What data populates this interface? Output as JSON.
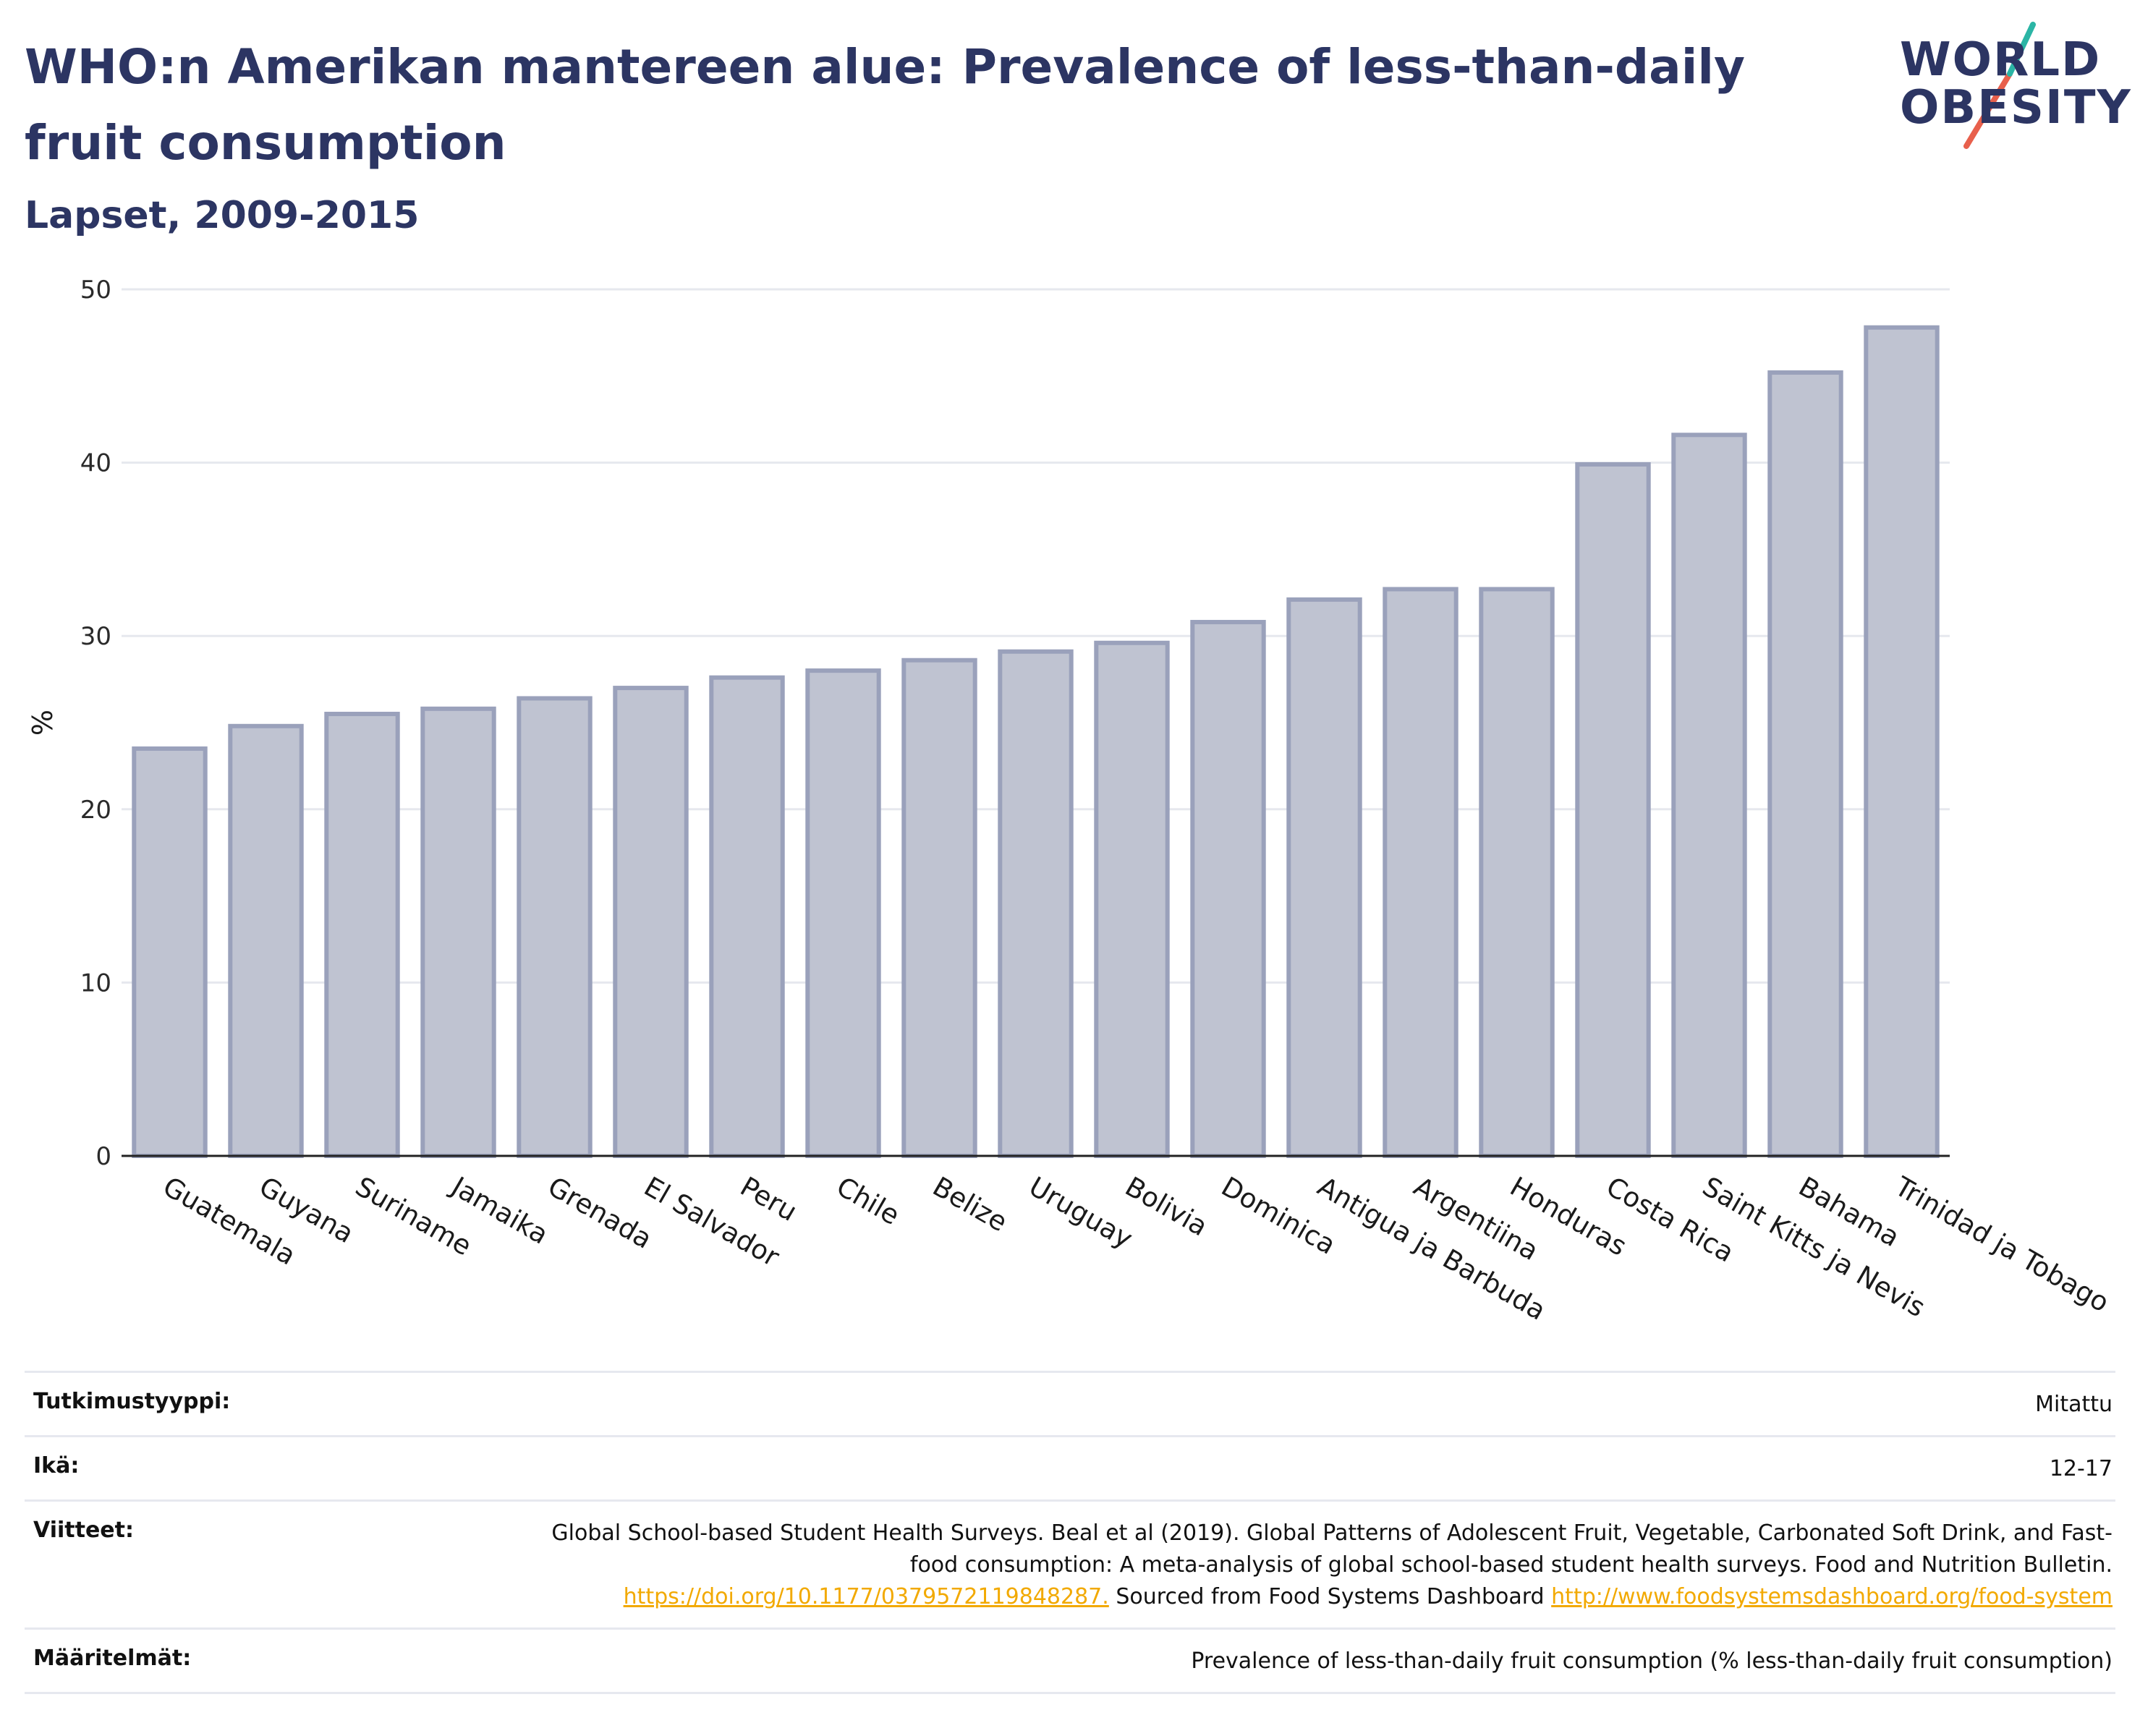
{
  "header": {
    "title": "WHO:n Amerikan mantereen alue: Prevalence of less-than-daily fruit consumption",
    "subtitle": "Lapset, 2009-2015"
  },
  "logo": {
    "line1": "WORLD",
    "line2": "OBESITY",
    "colors": {
      "text": "#2c3563",
      "slash_top": "#2bb5a5",
      "slash_bottom": "#e8604c"
    }
  },
  "chart_data": {
    "type": "bar",
    "title": "WHO:n Amerikan mantereen alue: Prevalence of less-than-daily fruit consumption",
    "subtitle": "Lapset, 2009-2015",
    "xlabel": "",
    "ylabel": "%",
    "ylim": [
      0,
      50
    ],
    "yticks": [
      0,
      10,
      20,
      30,
      40,
      50
    ],
    "grid": true,
    "bar_color": "#bfc3d1",
    "bar_edge_color": "#9aa1bb",
    "categories": [
      "Guatemala",
      "Guyana",
      "Suriname",
      "Jamaika",
      "Grenada",
      "El Salvador",
      "Peru",
      "Chile",
      "Belize",
      "Uruguay",
      "Bolivia",
      "Dominica",
      "Antigua ja Barbuda",
      "Argentiina",
      "Honduras",
      "Costa Rica",
      "Saint Kitts ja Nevis",
      "Bahama",
      "Trinidad ja Tobago"
    ],
    "values": [
      23.5,
      24.8,
      25.5,
      25.8,
      26.4,
      27.0,
      27.6,
      28.0,
      28.6,
      29.1,
      29.6,
      30.8,
      32.1,
      32.7,
      32.7,
      39.9,
      41.6,
      45.2,
      47.8
    ]
  },
  "meta": {
    "study_type_label": "Tutkimustyyppi:",
    "study_type_value": "Mitattu",
    "age_label": "Ikä:",
    "age_value": "12-17",
    "refs_label": "Viitteet:",
    "refs_text_1": "Global School-based Student Health Surveys. Beal et al (2019). Global Patterns of Adolescent Fruit, Vegetable, Carbonated Soft Drink, and Fast-food consumption: A meta-analysis of global school-based student health surveys. Food and Nutrition Bulletin.",
    "refs_link_1": "https://doi.org/10.1177/0379572119848287.",
    "refs_text_2": "Sourced from Food Systems Dashboard",
    "refs_link_2": "http://www.foodsystemsdashboard.org/food-system",
    "definitions_label": "Määritelmät:",
    "definitions_value": "Prevalence of less-than-daily fruit consumption (% less-than-daily fruit consumption)"
  }
}
